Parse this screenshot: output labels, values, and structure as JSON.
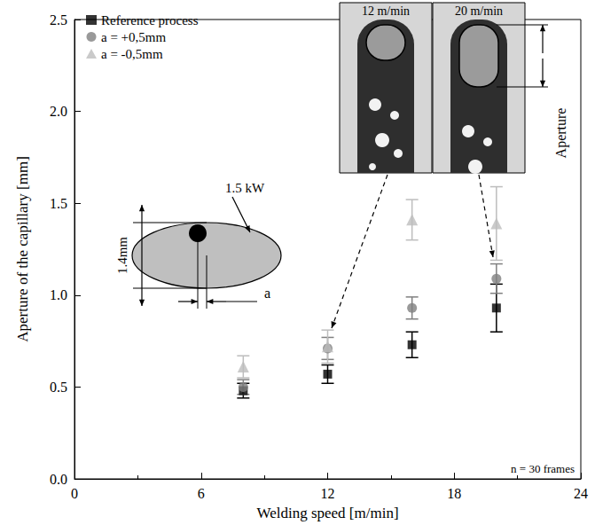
{
  "chart_data": {
    "type": "scatter",
    "x_label": "Welding speed [m/min]",
    "y_label": "Aperture of the capillary [mm]",
    "x": [
      8,
      12,
      16,
      20
    ],
    "series": [
      {
        "name": "Reference process",
        "color": "#000000",
        "marker": "square",
        "values": [
          0.48,
          0.57,
          0.73,
          0.93
        ],
        "errors": [
          0.04,
          0.05,
          0.07,
          0.13
        ]
      },
      {
        "name": "a = +0,5mm",
        "color": "#808080",
        "marker": "circle",
        "values": [
          0.5,
          0.71,
          0.93,
          1.09
        ],
        "errors": [
          0.04,
          0.06,
          0.06,
          0.08
        ]
      },
      {
        "name": "a = -0,5mm",
        "color": "#bdbdbd",
        "marker": "triangle",
        "values": [
          0.61,
          0.72,
          1.41,
          1.39
        ],
        "errors": [
          0.06,
          0.09,
          0.11,
          0.2
        ]
      }
    ],
    "xlim": [
      0,
      24
    ],
    "xticks": [
      0,
      6,
      12,
      18,
      24
    ],
    "ylim": [
      0,
      2.5
    ],
    "yticks": [
      {
        "value": 0,
        "label": "0.0"
      },
      0.5,
      {
        "value": 1,
        "label": "1.0"
      },
      1.5,
      {
        "value": 2,
        "label": "2.0"
      },
      2.5
    ],
    "legend": "upper left",
    "grid": false,
    "annotations": {
      "inset_diagram": {
        "height_label": "1.4mm",
        "power_label": "1.5 kW",
        "offset_label": "a"
      },
      "photos": [
        "12 m/min",
        "20 m/min"
      ],
      "photo_dimension": "Aperture",
      "sample_note": "n = 30 frames"
    }
  }
}
